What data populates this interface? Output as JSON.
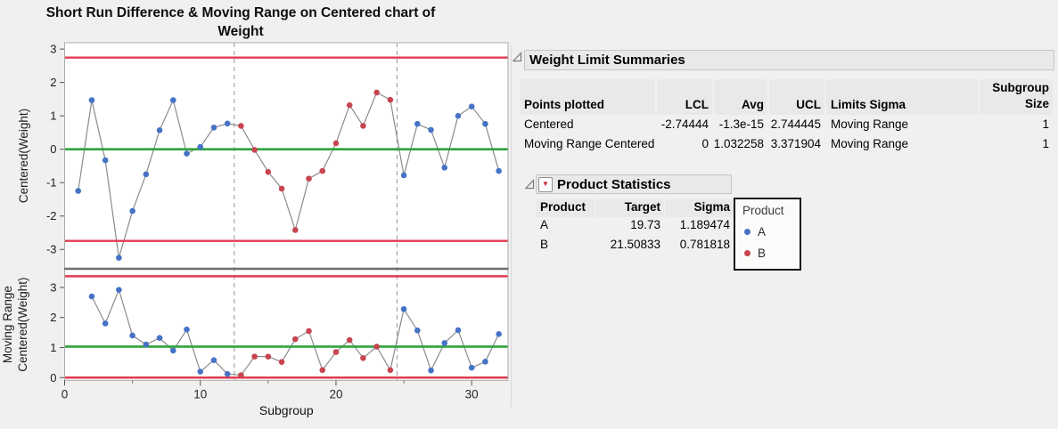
{
  "title": {
    "line1": "Short Run Difference & Moving Range on Centered chart of",
    "line2": "Weight"
  },
  "colors": {
    "product_a": "#4673c5",
    "product_b": "#c7454f",
    "limit_line": "#e23a50",
    "center_line": "#2da33c",
    "connector": "#8b8b8b",
    "panel_divider": "#6f6f6f",
    "phase_line": "#a6a6a6",
    "plot_background": "#ffffff",
    "page_background": "#f0f0ee"
  },
  "chart_data": [
    {
      "type": "line",
      "title": "Short Run Difference & Moving Range on Centered chart of Weight",
      "ylabel": "Centered(Weight)",
      "series_label": "Centered",
      "x": [
        1,
        2,
        3,
        4,
        5,
        6,
        7,
        8,
        9,
        10,
        11,
        12,
        13,
        14,
        15,
        16,
        17,
        18,
        19,
        20,
        21,
        22,
        23,
        24,
        25,
        26,
        27,
        28,
        29,
        30,
        31,
        32
      ],
      "y": [
        -1.25,
        1.47,
        -0.33,
        -3.25,
        -1.85,
        -0.75,
        0.57,
        1.47,
        -0.13,
        0.07,
        0.65,
        0.77,
        0.7,
        -0.02,
        -0.68,
        -1.18,
        -2.42,
        -0.88,
        -0.65,
        0.18,
        1.32,
        0.7,
        1.7,
        1.48,
        -0.78,
        0.76,
        0.58,
        -0.55,
        1.0,
        1.28,
        0.76,
        -0.65
      ],
      "product": [
        "A",
        "A",
        "A",
        "A",
        "A",
        "A",
        "A",
        "A",
        "A",
        "A",
        "A",
        "A",
        "B",
        "B",
        "B",
        "B",
        "B",
        "B",
        "B",
        "B",
        "B",
        "B",
        "B",
        "B",
        "A",
        "A",
        "A",
        "A",
        "A",
        "A",
        "A",
        "A"
      ],
      "avg": -1.3e-15,
      "ucl": 2.744445,
      "lcl": -2.74444,
      "ylim": [
        -3.58,
        3.19
      ],
      "yticks": [
        3,
        2,
        1,
        0,
        -1,
        -2,
        -3
      ],
      "phase_boundaries": [
        12.5,
        24.5
      ],
      "grid": false
    },
    {
      "type": "line",
      "ylabel_lines": [
        "Moving Range",
        "Centered(Weight)"
      ],
      "series_label": "Moving Range Centered",
      "x": [
        2,
        3,
        4,
        5,
        6,
        7,
        8,
        9,
        10,
        11,
        12,
        13,
        14,
        15,
        16,
        17,
        18,
        19,
        20,
        21,
        22,
        23,
        24,
        25,
        26,
        27,
        28,
        29,
        30,
        31,
        32
      ],
      "y": [
        2.7,
        1.8,
        2.92,
        1.4,
        1.1,
        1.32,
        0.9,
        1.6,
        0.2,
        0.58,
        0.12,
        0.08,
        0.7,
        0.7,
        0.52,
        1.28,
        1.55,
        0.25,
        0.85,
        1.25,
        0.65,
        1.03,
        0.25,
        2.28,
        1.57,
        0.24,
        1.15,
        1.58,
        0.33,
        0.53,
        1.45
      ],
      "product": [
        "A",
        "A",
        "A",
        "A",
        "A",
        "A",
        "A",
        "A",
        "A",
        "A",
        "A",
        "B",
        "B",
        "B",
        "B",
        "B",
        "B",
        "B",
        "B",
        "B",
        "B",
        "B",
        "B",
        "A",
        "A",
        "A",
        "A",
        "A",
        "A",
        "A",
        "A"
      ],
      "avg": 1.032258,
      "ucl": 3.371904,
      "lcl": 0,
      "ylim": [
        -0.09,
        3.62
      ],
      "yticks": [
        0,
        1,
        2,
        3
      ],
      "xlabel": "Subgroup",
      "xticks": [
        0,
        10,
        20,
        30
      ],
      "xminorticks": [
        5,
        15,
        25
      ],
      "xlim": [
        0,
        32.68
      ],
      "phase_boundaries": [
        12.5,
        24.5
      ],
      "grid": false
    }
  ],
  "limits_table": {
    "section_title": "Weight Limit Summaries",
    "headers": {
      "points": "Points plotted",
      "lcl": "LCL",
      "avg": "Avg",
      "ucl": "UCL",
      "sigma": "Limits Sigma",
      "subgroup_line1": "Subgroup",
      "subgroup_line2": "Size"
    },
    "rows": [
      {
        "points": "Centered",
        "lcl": "-2.74444",
        "avg": "-1.3e-15",
        "ucl": "2.744445",
        "sigma": "Moving Range",
        "size": "1"
      },
      {
        "points": "Moving Range Centered",
        "lcl": "0",
        "avg": "1.032258",
        "ucl": "3.371904",
        "sigma": "Moving Range",
        "size": "1"
      }
    ]
  },
  "product_table": {
    "section_title": "Product Statistics",
    "headers": {
      "product": "Product",
      "target": "Target",
      "sigma": "Sigma"
    },
    "rows": [
      {
        "product": "A",
        "target": "19.73",
        "sigma": "1.189474"
      },
      {
        "product": "B",
        "target": "21.50833",
        "sigma": "0.781818"
      }
    ]
  },
  "legend": {
    "title": "Product",
    "items": [
      {
        "label": "A",
        "color": "#4673c5"
      },
      {
        "label": "B",
        "color": "#c7454f"
      }
    ]
  }
}
